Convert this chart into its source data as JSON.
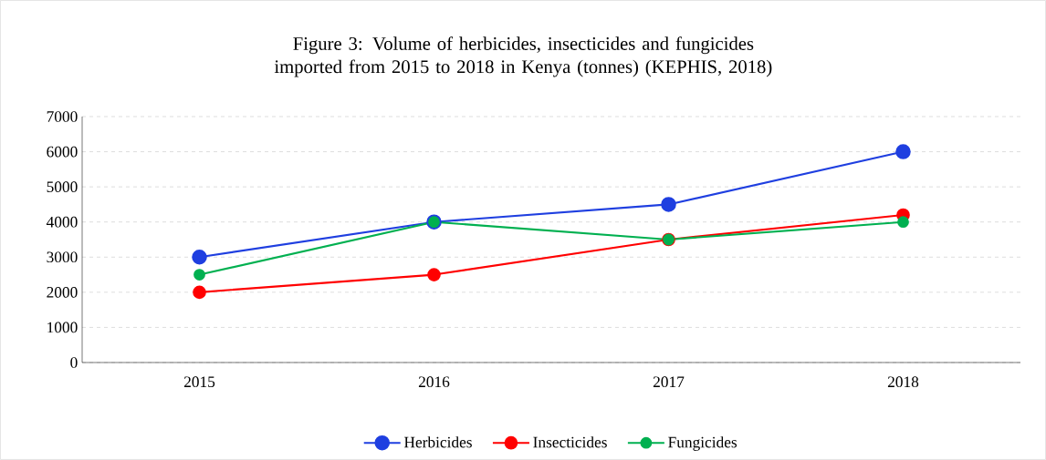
{
  "chart_data": {
    "type": "line",
    "title": "Figure 3: Volume of herbicides, insecticides and fungicides imported from 2015 to 2018 in Kenya (tonnes) (KEPHIS, 2018)",
    "categories": [
      "2015",
      "2016",
      "2017",
      "2018"
    ],
    "series": [
      {
        "name": "Herbicides",
        "color": "#1f3fe0",
        "values": [
          3000,
          4000,
          4500,
          6000
        ]
      },
      {
        "name": "Insecticides",
        "color": "#ff0000",
        "values": [
          2000,
          2500,
          3500,
          4200
        ]
      },
      {
        "name": "Fungicides",
        "color": "#00b050",
        "values": [
          2500,
          4000,
          3500,
          4000
        ]
      }
    ],
    "ylim": [
      0,
      7000
    ],
    "yticks": [
      0,
      1000,
      2000,
      3000,
      4000,
      5000,
      6000,
      7000
    ],
    "grid": "y",
    "legend": "bottom",
    "marker": "circle",
    "line_style": "solid"
  }
}
